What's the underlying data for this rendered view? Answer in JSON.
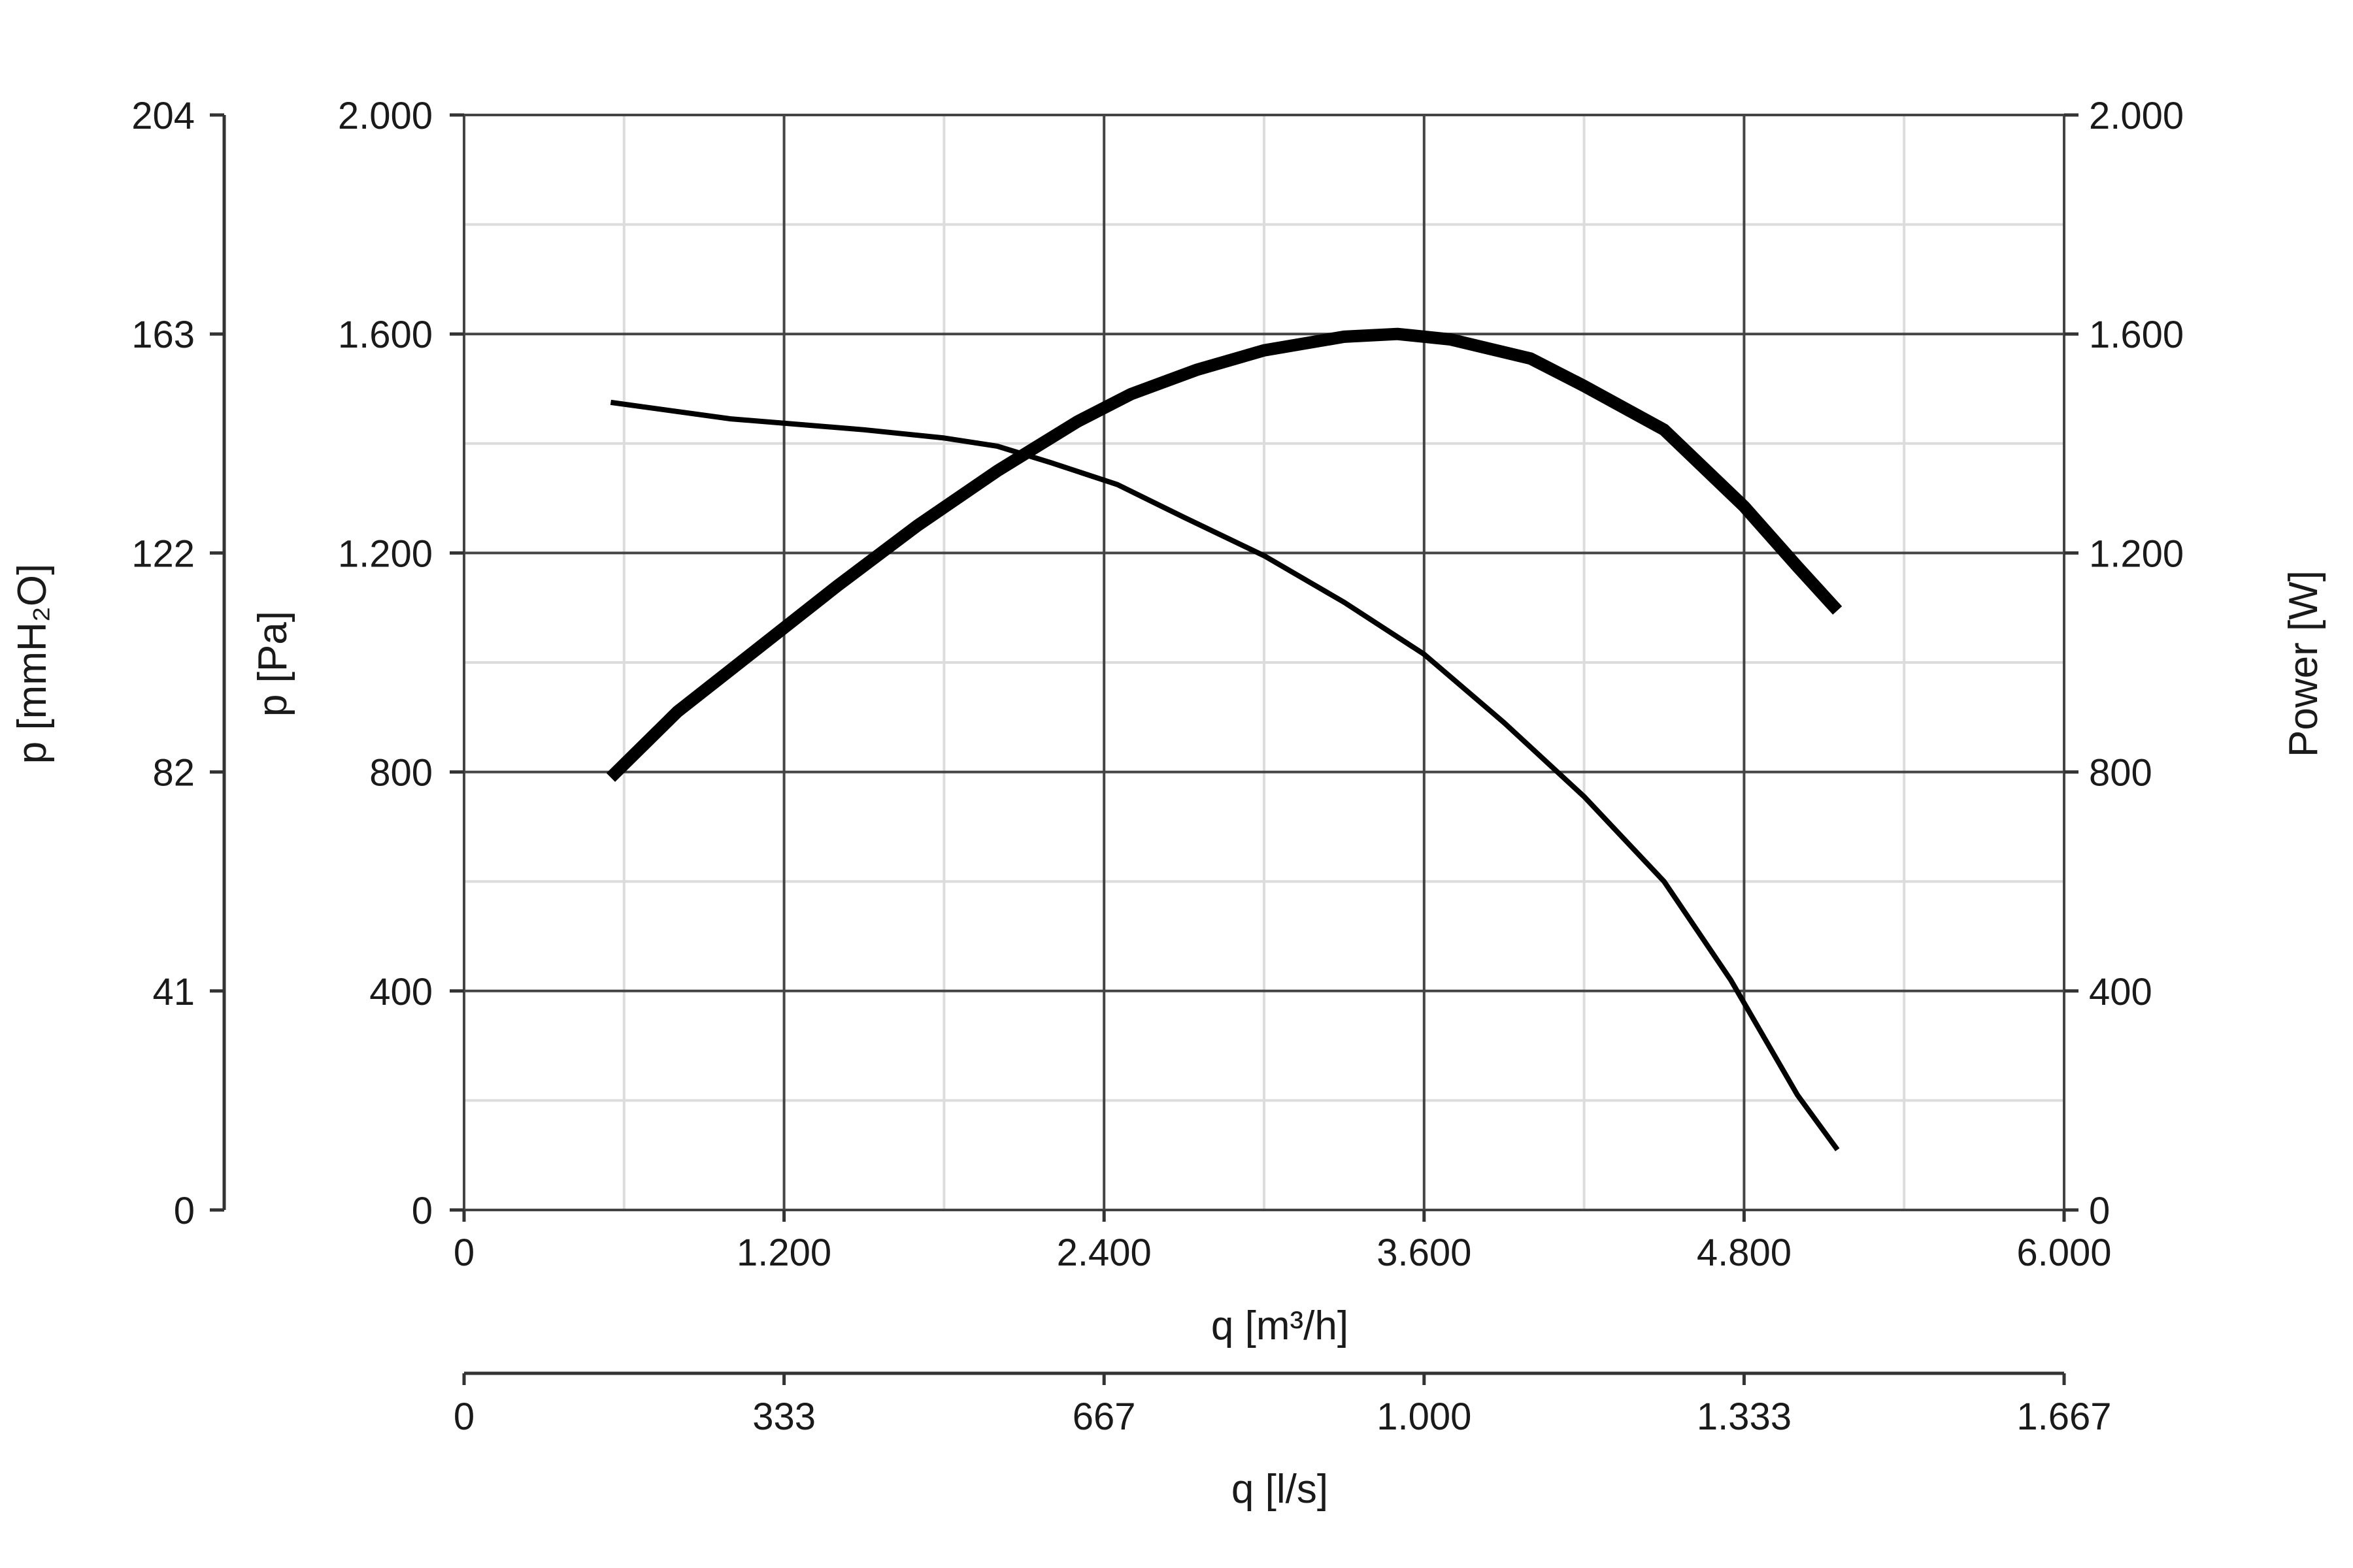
{
  "chart_data": {
    "type": "line",
    "xlabel": "q [m³/h]",
    "xlabel_secondary": "q [l/s]",
    "ylabel": "p [Pa]",
    "ylabel_left_outer": "p [mmH₂O]",
    "ylabel_right": "Power [W]",
    "xlim": [
      0,
      6000
    ],
    "ylim": [
      0,
      2000
    ],
    "y2lim": [
      0,
      2000
    ],
    "grid": true,
    "x_ticks": [
      {
        "value": 0,
        "label": "0"
      },
      {
        "value": 1200,
        "label": "1.200"
      },
      {
        "value": 2400,
        "label": "2.400"
      },
      {
        "value": 3600,
        "label": "3.600"
      },
      {
        "value": 4800,
        "label": "4.800"
      },
      {
        "value": 6000,
        "label": "6.000"
      }
    ],
    "x_secondary_ticks": [
      {
        "value": 0,
        "label": "0"
      },
      {
        "value": 1200,
        "label": "333"
      },
      {
        "value": 2400,
        "label": "667"
      },
      {
        "value": 3600,
        "label": "1.000"
      },
      {
        "value": 4800,
        "label": "1.333"
      },
      {
        "value": 6000,
        "label": "1.667"
      }
    ],
    "y_ticks": [
      {
        "value": 0,
        "label": "0"
      },
      {
        "value": 400,
        "label": "400"
      },
      {
        "value": 800,
        "label": "800"
      },
      {
        "value": 1200,
        "label": "1.200"
      },
      {
        "value": 1600,
        "label": "1.600"
      },
      {
        "value": 2000,
        "label": "2.000"
      }
    ],
    "y_outer_ticks": [
      {
        "value": 0,
        "label": "0"
      },
      {
        "value": 400,
        "label": "41"
      },
      {
        "value": 800,
        "label": "82"
      },
      {
        "value": 1200,
        "label": "122"
      },
      {
        "value": 1600,
        "label": "163"
      },
      {
        "value": 2000,
        "label": "204"
      }
    ],
    "y_right_ticks": [
      {
        "value": 0,
        "label": "0"
      },
      {
        "value": 400,
        "label": "400"
      },
      {
        "value": 800,
        "label": "800"
      },
      {
        "value": 1200,
        "label": "1.200"
      },
      {
        "value": 1600,
        "label": "1.600"
      },
      {
        "value": 2000,
        "label": "2.000"
      }
    ],
    "series": [
      {
        "axis": "left",
        "x": [
          550,
          700,
          1000,
          1500,
          1800,
          2000,
          2200,
          2450,
          2700,
          3000,
          3300,
          3600,
          3900,
          4200,
          4500,
          4750,
          5000,
          5150
        ],
        "y": [
          1475,
          1465,
          1445,
          1425,
          1410,
          1395,
          1365,
          1325,
          1265,
          1195,
          1110,
          1015,
          890,
          755,
          600,
          420,
          210,
          110
        ]
      },
      {
        "axis": "right",
        "x": [
          550,
          800,
          1100,
          1400,
          1700,
          2000,
          2300,
          2500,
          2750,
          3000,
          3300,
          3500,
          3700,
          4000,
          4200,
          4500,
          4800,
          5000,
          5150
        ],
        "y": [
          790,
          910,
          1025,
          1140,
          1250,
          1350,
          1440,
          1490,
          1535,
          1570,
          1595,
          1600,
          1590,
          1555,
          1505,
          1425,
          1285,
          1175,
          1095
        ]
      }
    ]
  }
}
